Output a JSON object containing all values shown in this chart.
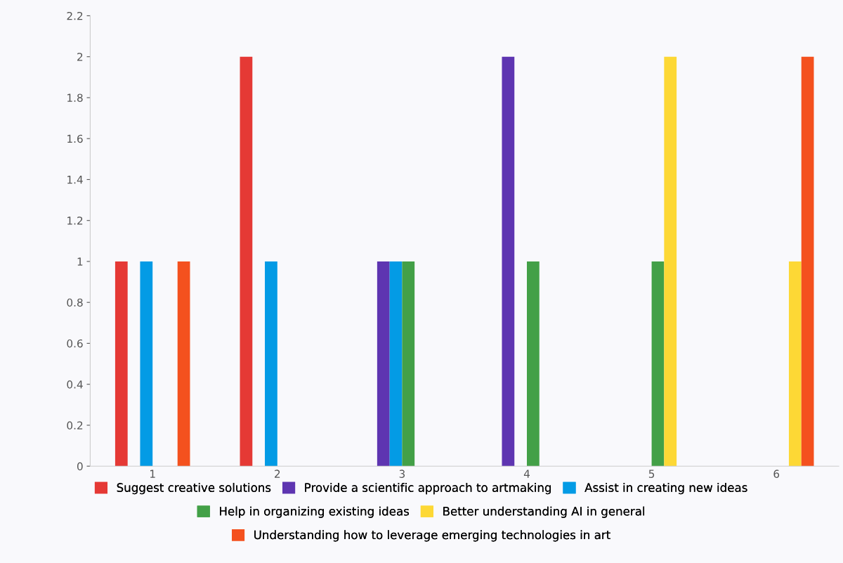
{
  "chart_data": {
    "type": "bar",
    "categories": [
      "1",
      "2",
      "3",
      "4",
      "5",
      "6"
    ],
    "series": [
      {
        "name": "Suggest creative solutions",
        "color": "#e53935",
        "values": [
          1,
          2,
          0,
          0,
          0,
          0
        ]
      },
      {
        "name": "Provide a scientific approach to artmaking",
        "color": "#5e35b1",
        "values": [
          0,
          0,
          1,
          2,
          0,
          0
        ]
      },
      {
        "name": "Assist in creating new ideas",
        "color": "#039be5",
        "values": [
          1,
          1,
          1,
          0,
          0,
          0
        ]
      },
      {
        "name": "Help in organizing existing ideas",
        "color": "#43a047",
        "values": [
          0,
          0,
          1,
          1,
          1,
          0
        ]
      },
      {
        "name": "Better understanding AI in general",
        "color": "#fdd835",
        "values": [
          0,
          0,
          0,
          0,
          2,
          1
        ]
      },
      {
        "name": "Understanding how to leverage emerging technologies in art",
        "color": "#f4511e",
        "values": [
          1,
          0,
          0,
          0,
          0,
          2
        ]
      }
    ],
    "ylim": [
      0,
      2.2
    ],
    "yticks": [
      0,
      0.2,
      0.4,
      0.6,
      0.8,
      1,
      1.2,
      1.4,
      1.6,
      1.8,
      2,
      2.2
    ],
    "grid": false,
    "legend": "bottom"
  }
}
